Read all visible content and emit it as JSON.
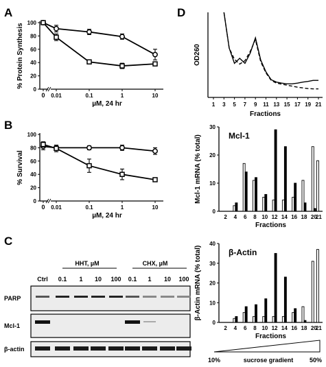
{
  "panels": {
    "A": "A",
    "B": "B",
    "C": "C",
    "D": "D"
  },
  "chart_data": [
    {
      "id": "A",
      "type": "line",
      "ylabel": "% Protein Synthesis",
      "xlabel": "µM, 24 hr",
      "ylim": [
        0,
        100
      ],
      "yticks": [
        "0",
        "20",
        "40",
        "60",
        "80",
        "100"
      ],
      "xticks": [
        "0",
        "0.01",
        "0.1",
        "1",
        "10"
      ],
      "series": [
        {
          "marker": "circle",
          "x": [
            0,
            0.01,
            0.1,
            1,
            10
          ],
          "y": [
            100,
            91,
            86,
            79,
            52
          ],
          "err": [
            2,
            5,
            4,
            4,
            8
          ]
        },
        {
          "marker": "square",
          "x": [
            0,
            0.01,
            0.1,
            1,
            10
          ],
          "y": [
            100,
            78,
            41,
            35,
            38
          ],
          "err": [
            2,
            5,
            3,
            4,
            3
          ]
        }
      ]
    },
    {
      "id": "B",
      "type": "line",
      "ylabel": "% Survival",
      "xlabel": "µM, 24 hr",
      "ylim": [
        0,
        100
      ],
      "yticks": [
        "0",
        "20",
        "40",
        "60",
        "80",
        "100"
      ],
      "xticks": [
        "0",
        "0.01",
        "0.1",
        "1",
        "10"
      ],
      "series": [
        {
          "marker": "circle",
          "x": [
            0,
            0.01,
            0.1,
            1,
            10
          ],
          "y": [
            82,
            80,
            80,
            80,
            75
          ],
          "err": [
            5,
            4,
            3,
            4,
            5
          ]
        },
        {
          "marker": "square",
          "x": [
            0,
            0.01,
            0.1,
            1,
            10
          ],
          "y": [
            85,
            79,
            53,
            40,
            32
          ],
          "err": [
            4,
            5,
            10,
            8,
            3
          ]
        }
      ]
    },
    {
      "id": "D-OD",
      "type": "line",
      "ylabel": "OD260",
      "xlabel": "Fractions",
      "xticks": [
        "1",
        "3",
        "5",
        "7",
        "9",
        "11",
        "13",
        "15",
        "17",
        "19",
        "21"
      ],
      "x": [
        3,
        4,
        5,
        6,
        7,
        8,
        9,
        10,
        11,
        12,
        13,
        14,
        15,
        16,
        17,
        18,
        19,
        20,
        21
      ],
      "series": [
        {
          "style": "solid",
          "y": [
            2.5,
            1.45,
            1.0,
            1.15,
            1.0,
            1.3,
            1.75,
            1.1,
            0.75,
            0.52,
            0.45,
            0.42,
            0.4,
            0.4,
            0.42,
            0.45,
            0.47,
            0.5,
            0.5
          ]
        },
        {
          "style": "dashed",
          "y": [
            2.5,
            1.45,
            1.12,
            0.98,
            1.08,
            1.35,
            1.7,
            1.05,
            0.72,
            0.5,
            0.42,
            0.39,
            0.36,
            0.33,
            0.3,
            0.28,
            0.26,
            0.25,
            0.25
          ]
        }
      ]
    },
    {
      "id": "D-Mcl1",
      "type": "bar",
      "title": "Mcl-1",
      "ylabel": "Mcl-1 mRNA (% total)",
      "xlabel": "Fractions",
      "ylim": [
        0,
        30
      ],
      "yticks": [
        "0",
        "10",
        "20",
        "30"
      ],
      "categories": [
        2,
        3,
        4,
        5,
        6,
        7,
        8,
        9,
        10,
        11,
        12,
        13,
        14,
        15,
        16,
        17,
        18,
        19,
        20,
        21
      ],
      "xticks": [
        "2",
        "4",
        "6",
        "8",
        "10",
        "12",
        "14",
        "16",
        "18",
        "20",
        "21"
      ],
      "series": [
        {
          "fill": "white",
          "values": [
            0,
            0,
            2,
            0,
            17,
            0,
            11,
            0,
            5,
            0,
            4,
            0,
            4,
            0,
            5,
            0,
            11,
            0,
            23,
            18
          ]
        },
        {
          "fill": "black",
          "values": [
            0,
            0,
            3,
            0,
            14,
            0,
            12,
            0,
            6,
            0,
            29,
            0,
            23,
            0,
            10,
            0,
            3,
            0,
            1,
            0
          ]
        }
      ]
    },
    {
      "id": "D-Actin",
      "type": "bar",
      "title": "β-Actin",
      "ylabel": "β-Actin mRNA (% total)",
      "xlabel": "Fractions",
      "ylim": [
        0,
        40
      ],
      "yticks": [
        "0",
        "10",
        "20",
        "30",
        "40"
      ],
      "categories": [
        2,
        3,
        4,
        5,
        6,
        7,
        8,
        9,
        10,
        11,
        12,
        13,
        14,
        15,
        16,
        17,
        18,
        19,
        20,
        21
      ],
      "xticks": [
        "2",
        "4",
        "6",
        "8",
        "10",
        "12",
        "14",
        "16",
        "18",
        "20",
        "21"
      ],
      "series": [
        {
          "fill": "white",
          "values": [
            0,
            0,
            2,
            0,
            5,
            0,
            3,
            0,
            3,
            0,
            3,
            0,
            3,
            0,
            5,
            0,
            8,
            0,
            31,
            37
          ]
        },
        {
          "fill": "black",
          "values": [
            0,
            0,
            3,
            0,
            8,
            0,
            9,
            0,
            12,
            0,
            35,
            0,
            23,
            0,
            7,
            0,
            1,
            0,
            0,
            0
          ]
        }
      ]
    }
  ],
  "blot": {
    "group1": "HHT, µM",
    "group2": "CHX, µM",
    "lanes": [
      "Ctrl",
      "0.1",
      "1",
      "10",
      "100",
      "0.1",
      "1",
      "10",
      "100"
    ],
    "rows": [
      "PARP",
      "Mcl-1",
      "β-actin"
    ]
  },
  "gradient": {
    "left": "10%",
    "center": "sucrose gradient",
    "right": "50%"
  }
}
